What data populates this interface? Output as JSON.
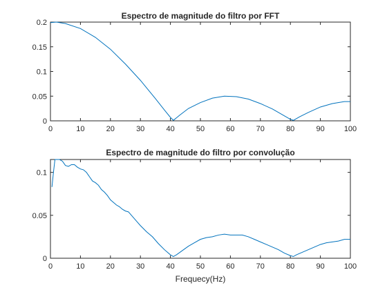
{
  "chart_data": [
    {
      "type": "line",
      "title": "Espectro de magnitude do filtro por FFT",
      "xlabel": "",
      "ylabel": "",
      "xlim": [
        0,
        100
      ],
      "ylim": [
        0,
        0.2
      ],
      "xticks": [
        "0",
        "10",
        "20",
        "30",
        "40",
        "50",
        "60",
        "70",
        "80",
        "90",
        "100"
      ],
      "yticks": [
        "0",
        "0.05",
        "0.1",
        "0.15",
        "0.2"
      ],
      "grid": false,
      "series": [
        {
          "color": "#0072BD",
          "x": [
            0,
            2,
            5,
            10,
            15,
            20,
            25,
            30,
            35,
            38,
            40,
            41,
            43,
            46,
            50,
            54,
            58,
            62,
            66,
            70,
            74,
            78,
            80,
            81,
            83,
            86,
            90,
            94,
            98,
            100
          ],
          "y": [
            0.199,
            0.2,
            0.197,
            0.187,
            0.169,
            0.145,
            0.115,
            0.082,
            0.045,
            0.022,
            0.007,
            0.001,
            0.011,
            0.025,
            0.037,
            0.046,
            0.05,
            0.049,
            0.044,
            0.035,
            0.024,
            0.01,
            0.003,
            0.001,
            0.008,
            0.017,
            0.028,
            0.035,
            0.039,
            0.039
          ]
        }
      ]
    },
    {
      "type": "line",
      "title": "Espectro de magnitude do filtro por convolução",
      "xlabel": "Frequecy(Hz)",
      "ylabel": "",
      "xlim": [
        0,
        100
      ],
      "ylim": [
        0,
        0.115
      ],
      "xticks": [
        "0",
        "10",
        "20",
        "30",
        "40",
        "50",
        "60",
        "70",
        "80",
        "90",
        "100"
      ],
      "yticks": [
        "0",
        "0.05",
        "0.1"
      ],
      "grid": false,
      "series": [
        {
          "color": "#0072BD",
          "x": [
            0.5,
            1,
            1.5,
            2,
            2.5,
            3,
            4,
            5,
            6,
            7,
            8,
            9,
            10,
            11,
            12,
            13,
            14,
            15,
            16,
            17,
            18,
            19,
            20,
            21,
            22,
            23,
            24,
            25,
            26,
            27,
            28,
            29,
            30,
            32,
            34,
            36,
            38,
            40,
            41,
            42,
            44,
            46,
            48,
            50,
            52,
            54,
            56,
            58,
            60,
            62,
            64,
            66,
            68,
            70,
            72,
            74,
            76,
            78,
            80,
            81,
            82,
            84,
            86,
            88,
            90,
            92,
            94,
            96,
            98,
            100
          ],
          "y": [
            0.083,
            0.1,
            0.115,
            0.117,
            0.117,
            0.116,
            0.113,
            0.108,
            0.107,
            0.109,
            0.109,
            0.106,
            0.104,
            0.103,
            0.1,
            0.095,
            0.09,
            0.088,
            0.085,
            0.08,
            0.077,
            0.073,
            0.068,
            0.065,
            0.062,
            0.06,
            0.057,
            0.055,
            0.054,
            0.05,
            0.046,
            0.042,
            0.038,
            0.031,
            0.025,
            0.017,
            0.01,
            0.004,
            0.002,
            0.004,
            0.009,
            0.014,
            0.018,
            0.022,
            0.024,
            0.025,
            0.027,
            0.028,
            0.027,
            0.027,
            0.027,
            0.025,
            0.022,
            0.019,
            0.016,
            0.013,
            0.01,
            0.006,
            0.003,
            0.002,
            0.004,
            0.007,
            0.01,
            0.013,
            0.016,
            0.018,
            0.019,
            0.02,
            0.022,
            0.022
          ]
        }
      ]
    }
  ]
}
